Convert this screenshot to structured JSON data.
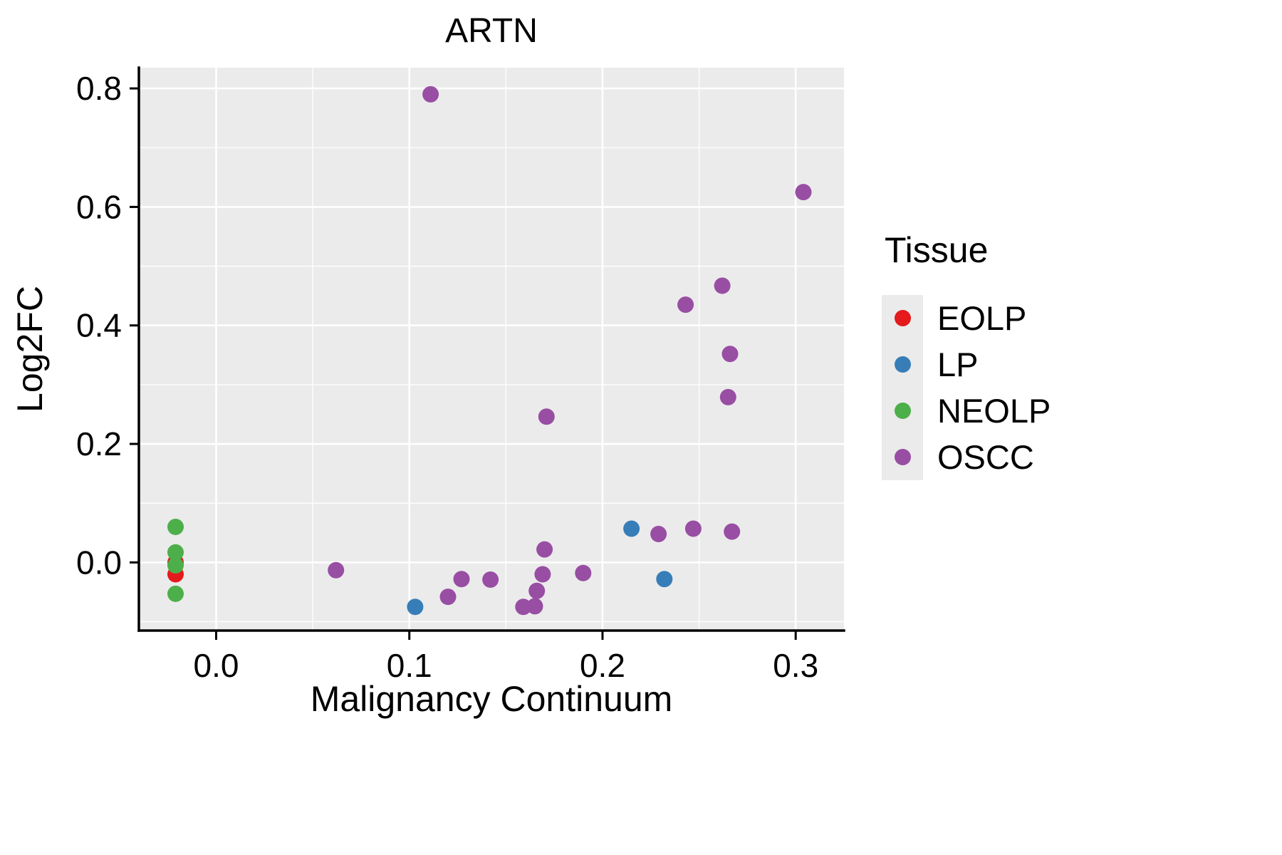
{
  "chart_data": {
    "type": "scatter",
    "title": "ARTN",
    "xlabel": "Malignancy Continuum",
    "ylabel": "Log2FC",
    "xlim": [
      -0.04,
      0.325
    ],
    "ylim": [
      -0.115,
      0.835
    ],
    "x_ticks": [
      0.0,
      0.1,
      0.2,
      0.3
    ],
    "y_ticks": [
      0.0,
      0.2,
      0.4,
      0.6,
      0.8
    ],
    "x_minor_ticks": [
      0.05,
      0.15,
      0.25
    ],
    "y_minor_ticks": [
      -0.1,
      0.1,
      0.3,
      0.5,
      0.7
    ],
    "grid": true,
    "panel_bg": "#EBEBEB",
    "grid_color": "#FFFFFF",
    "legend": {
      "title": "Tissue",
      "position": "right"
    },
    "series": [
      {
        "name": "EOLP",
        "color": "#E41A1C",
        "points": [
          [
            -0.021,
            0.0
          ],
          [
            -0.021,
            -0.02
          ]
        ]
      },
      {
        "name": "LP",
        "color": "#377EB8",
        "points": [
          [
            0.103,
            -0.075
          ],
          [
            0.215,
            0.057
          ],
          [
            0.232,
            -0.028
          ]
        ]
      },
      {
        "name": "NEOLP",
        "color": "#4DAF4A",
        "points": [
          [
            -0.021,
            0.06
          ],
          [
            -0.021,
            0.017
          ],
          [
            -0.021,
            -0.005
          ],
          [
            -0.021,
            -0.053
          ]
        ]
      },
      {
        "name": "OSCC",
        "color": "#984EA3",
        "points": [
          [
            0.111,
            0.79
          ],
          [
            0.304,
            0.625
          ],
          [
            0.262,
            0.467
          ],
          [
            0.243,
            0.435
          ],
          [
            0.266,
            0.352
          ],
          [
            0.265,
            0.279
          ],
          [
            0.171,
            0.246
          ],
          [
            0.062,
            -0.013
          ],
          [
            0.12,
            -0.058
          ],
          [
            0.127,
            -0.028
          ],
          [
            0.142,
            -0.029
          ],
          [
            0.159,
            -0.075
          ],
          [
            0.165,
            -0.074
          ],
          [
            0.166,
            -0.048
          ],
          [
            0.169,
            -0.02
          ],
          [
            0.17,
            0.022
          ],
          [
            0.19,
            -0.018
          ],
          [
            0.229,
            0.048
          ],
          [
            0.247,
            0.057
          ],
          [
            0.267,
            0.052
          ]
        ]
      }
    ]
  }
}
